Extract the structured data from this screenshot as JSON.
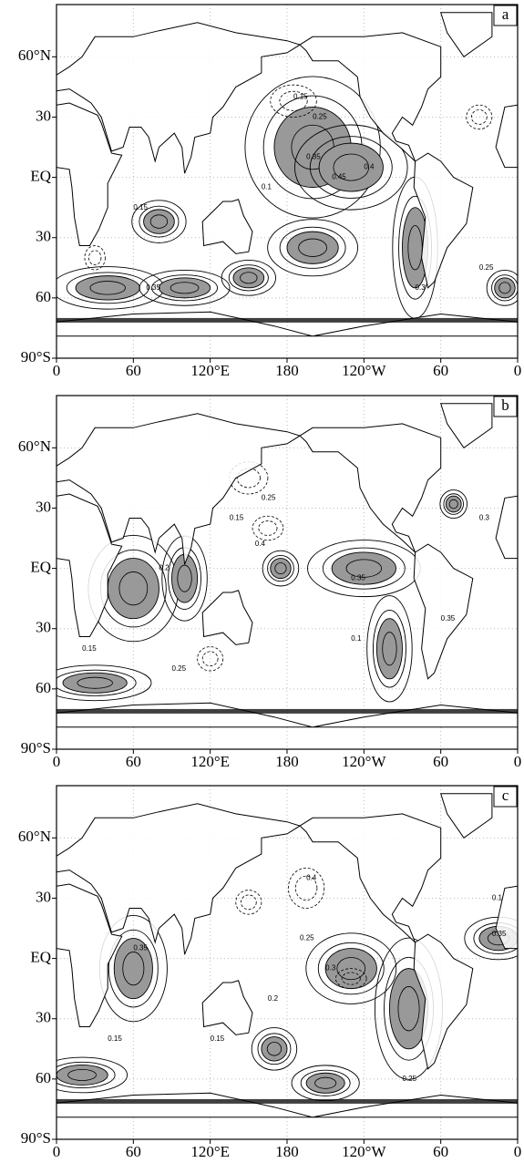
{
  "axes": {
    "xlim": [
      0,
      360
    ],
    "ylim": [
      -90,
      86
    ],
    "grid": true,
    "xticks": [
      0,
      60,
      {
        "value": 120,
        "label": "120°E"
      },
      180,
      {
        "value": 240,
        "label": "120°W"
      },
      {
        "value": 300,
        "label": "60"
      },
      {
        "value": 360,
        "label": "0"
      }
    ],
    "yticks": [
      {
        "value": 60,
        "label": "60°N"
      },
      30,
      {
        "value": 0,
        "label": "EQ"
      },
      {
        "value": -30,
        "label": "30"
      },
      {
        "value": -60,
        "label": "60"
      },
      {
        "value": -90,
        "label": "90°S"
      }
    ]
  },
  "panels": [
    {
      "label": "a",
      "contour_labels": [
        "0.15",
        "0.25",
        "0.35",
        "0.45",
        "0.4",
        "0.1",
        "0.15",
        "0.35",
        "0.25",
        "0.3"
      ]
    },
    {
      "label": "b",
      "contour_labels": [
        "0.15",
        "0.25",
        "0.4",
        "0.35",
        "0.1",
        "0.2",
        "0.15",
        "0.35",
        "0.25",
        "0.3"
      ]
    },
    {
      "label": "c",
      "contour_labels": [
        "0.15",
        "0.25",
        "0.35",
        "0.4",
        "0.3",
        "0.2",
        "0.15",
        "0.35",
        "0.25",
        "0.1"
      ]
    }
  ]
}
